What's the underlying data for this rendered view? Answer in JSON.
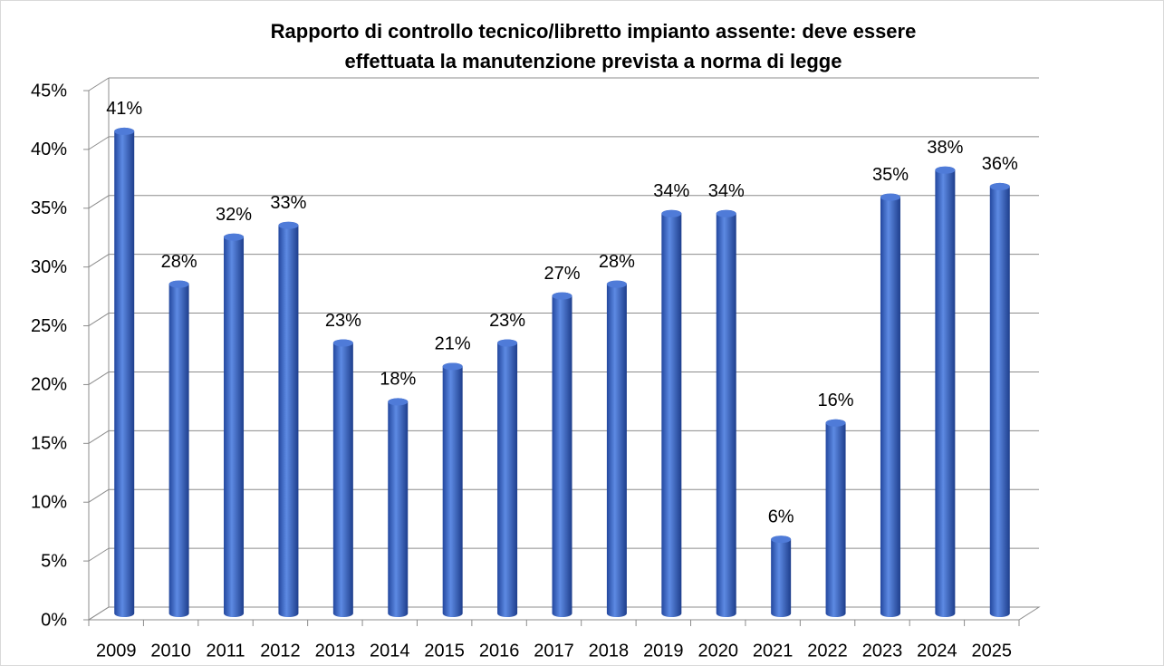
{
  "chart_data": {
    "type": "bar",
    "title": "Rapporto di controllo tecnico/libretto impianto assente: deve essere\neffettuata la manutenzione prevista a norma di legge",
    "categories": [
      "2009",
      "2010",
      "2011",
      "2012",
      "2013",
      "2014",
      "2015",
      "2016",
      "2017",
      "2018",
      "2019",
      "2020",
      "2021",
      "2022",
      "2023",
      "2024",
      "2025"
    ],
    "values": [
      41,
      28,
      32,
      33,
      23,
      18,
      21,
      23,
      27,
      28,
      34,
      34,
      6.3,
      16.2,
      35.4,
      37.7,
      36.3
    ],
    "value_labels": [
      "41%",
      "28%",
      "32%",
      "33%",
      "23%",
      "18%",
      "21%",
      "23%",
      "27%",
      "28%",
      "34%",
      "34%",
      "6%",
      "16%",
      "35%",
      "38%",
      "36%"
    ],
    "color": "#3a66c8",
    "ylim": [
      0,
      45
    ],
    "yticks": [
      {
        "value": 0,
        "label": "0%"
      },
      {
        "value": 5,
        "label": "5%"
      },
      {
        "value": 10,
        "label": "10%"
      },
      {
        "value": 15,
        "label": "15%"
      },
      {
        "value": 20,
        "label": "20%"
      },
      {
        "value": 25,
        "label": "25%"
      },
      {
        "value": 30,
        "label": "30%"
      },
      {
        "value": 35,
        "label": "35%"
      },
      {
        "value": 40,
        "label": "40%"
      },
      {
        "value": 45,
        "label": "45%"
      }
    ],
    "grid": true
  }
}
